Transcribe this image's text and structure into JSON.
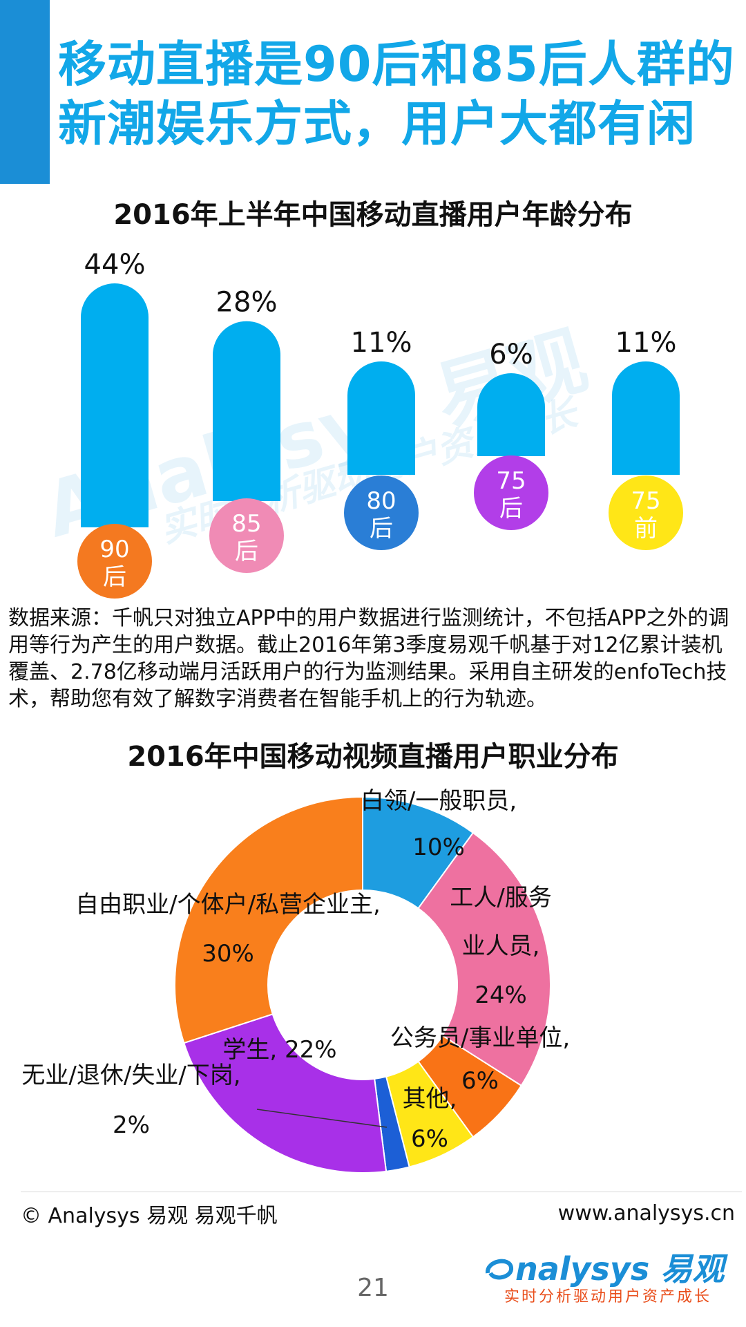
{
  "page": {
    "title": "移动直播是90后和85后人群的新潮娱乐方式，用户大都有闲",
    "source_note": "数据来源：千帆只对独立APP中的用户数据进行监测统计，不包括APP之外的调用等行为产生的用户数据。截止2016年第3季度易观千帆基于对12亿累计装机覆盖、2.78亿移动端月活跃用户的行为监测结果。采用自主研发的enfoTech技术，帮助您有效了解数字消费者在智能手机上的行为轨迹。",
    "copyright": "© Analysys 易观 易观千帆",
    "website": "www.analysys.cn",
    "brand_name": "nalysys",
    "brand_cn": "易观",
    "brand_tagline": "实时分析驱动用户资产成长",
    "watermark_brand": "Analysys 易观",
    "watermark_tagline": "实时分析驱动用户资产成长",
    "page_number": "21"
  },
  "colors": {
    "accent": "#1b8ed6",
    "title": "#12a7e8",
    "bar": "#00aeef"
  },
  "chart_data": [
    {
      "type": "bar",
      "title": "2016年上半年中国移动直播用户年龄分布",
      "categories": [
        "90后",
        "85后",
        "80后",
        "75后",
        "75前"
      ],
      "values": [
        44,
        28,
        11,
        6,
        11
      ],
      "value_labels": [
        "44%",
        "28%",
        "11%",
        "6%",
        "11%"
      ],
      "category_colors": [
        "#f47920",
        "#f08bb5",
        "#2a7ed6",
        "#b23ee8",
        "#ffe617"
      ],
      "category_text_colors": [
        "#ffffff",
        "#ffffff",
        "#ffffff",
        "#ffffff",
        "#ffffff"
      ],
      "bar_color": "#00aeef",
      "grid": false
    },
    {
      "type": "pie",
      "style": "donut",
      "title": "2016年中国移动视频直播用户职业分布",
      "slices": [
        {
          "label": "白领/一般职员,",
          "value": 10,
          "value_label": "10%",
          "color": "#1e9de0"
        },
        {
          "label": "工人/服务业人员,",
          "value": 24,
          "value_label": "24%",
          "color": "#ee71a0"
        },
        {
          "label": "公务员/事业单位,",
          "value": 6,
          "value_label": "6%",
          "color": "#f97316"
        },
        {
          "label": "其他,",
          "value": 6,
          "value_label": "6%",
          "color": "#ffe617"
        },
        {
          "label": "无业/退休/失业/下岗,",
          "value": 2,
          "value_label": "2%",
          "color": "#1c5fd6"
        },
        {
          "label": "学生,",
          "value": 22,
          "value_label": "22%",
          "color": "#a830e8"
        },
        {
          "label": "自由职业/个体户/私营企业主,",
          "value": 30,
          "value_label": "30%",
          "color": "#f97f1c"
        }
      ]
    }
  ]
}
